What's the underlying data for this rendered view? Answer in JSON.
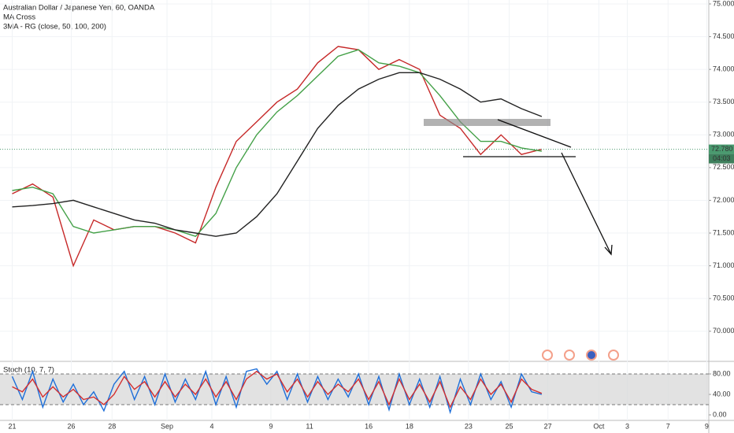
{
  "chart_data": [
    {
      "type": "line",
      "title": "Australian Dollar / Japanese Yen, 60, OANDA",
      "subtitle": [
        "MA Cross",
        "3MA - RG (close, 50, 100, 200)"
      ],
      "x": [
        0,
        1,
        2,
        3,
        4,
        5,
        6,
        7,
        8,
        9,
        10,
        11,
        12,
        13,
        14,
        15,
        16,
        17,
        18,
        19,
        20,
        21,
        22,
        23,
        24,
        25,
        26
      ],
      "series": [
        {
          "color": "#c62828",
          "values": [
            72.1,
            72.25,
            72.05,
            71.0,
            71.7,
            71.55,
            71.6,
            71.6,
            71.5,
            71.35,
            72.2,
            72.9,
            73.2,
            73.5,
            73.7,
            74.1,
            74.35,
            74.3,
            74.0,
            74.15,
            74.0,
            73.3,
            73.1,
            72.7,
            73.0,
            72.7,
            72.78
          ]
        },
        {
          "color": "#43a047",
          "values": [
            72.15,
            72.2,
            72.1,
            71.6,
            71.5,
            71.55,
            71.6,
            71.6,
            71.55,
            71.45,
            71.8,
            72.5,
            73.0,
            73.35,
            73.6,
            73.9,
            74.2,
            74.3,
            74.1,
            74.05,
            73.95,
            73.6,
            73.2,
            72.9,
            72.9,
            72.8,
            72.75
          ]
        },
        {
          "color": "#222222",
          "values": [
            71.9,
            71.92,
            71.95,
            72.0,
            71.9,
            71.8,
            71.7,
            71.65,
            71.55,
            71.5,
            71.45,
            71.5,
            71.75,
            72.1,
            72.6,
            73.1,
            73.45,
            73.7,
            73.85,
            73.95,
            73.95,
            73.85,
            73.7,
            73.5,
            73.55,
            73.4,
            73.28
          ]
        }
      ],
      "xlim": [
        -0.6,
        34.2
      ],
      "xticks": [
        {
          "value": 0,
          "label": "21"
        },
        {
          "value": 2.9,
          "label": "26"
        },
        {
          "value": 4.9,
          "label": "28"
        },
        {
          "value": 7.6,
          "label": "Sep"
        },
        {
          "value": 9.8,
          "label": "4"
        },
        {
          "value": 12.7,
          "label": "9"
        },
        {
          "value": 14.6,
          "label": "11"
        },
        {
          "value": 17.5,
          "label": "16"
        },
        {
          "value": 19.5,
          "label": "18"
        },
        {
          "value": 22.4,
          "label": "23"
        },
        {
          "value": 24.4,
          "label": "25"
        },
        {
          "value": 26.3,
          "label": "27"
        },
        {
          "value": 28.8,
          "label": "Oct"
        },
        {
          "value": 30.2,
          "label": "3"
        },
        {
          "value": 32.2,
          "label": "7"
        },
        {
          "value": 34.1,
          "label": "9"
        }
      ],
      "ylim": [
        69.54,
        75.06
      ],
      "yticks": [
        {
          "value": 70,
          "label": "70.000"
        },
        {
          "value": 70.5,
          "label": "70.500"
        },
        {
          "value": 71,
          "label": "71.000"
        },
        {
          "value": 71.5,
          "label": "71.500"
        },
        {
          "value": 72,
          "label": "72.000"
        },
        {
          "value": 72.5,
          "label": "72.500"
        },
        {
          "value": 73,
          "label": "73.000"
        },
        {
          "value": 73.5,
          "label": "73.500"
        },
        {
          "value": 74,
          "label": "74.000"
        },
        {
          "value": 74.5,
          "label": "74.500"
        },
        {
          "value": 75,
          "label": "75.000"
        }
      ],
      "last_price": {
        "value": 72.78,
        "label": "72.780"
      },
      "countdown": "04:03",
      "grid": true
    },
    {
      "type": "line",
      "title": "Stoch (10, 7, 7)",
      "x": [
        0,
        0.5,
        1,
        1.5,
        2,
        2.5,
        3,
        3.5,
        4,
        4.5,
        5,
        5.5,
        6,
        6.5,
        7,
        7.5,
        8,
        8.5,
        9,
        9.5,
        10,
        10.5,
        11,
        11.5,
        12,
        12.5,
        13,
        13.5,
        14,
        14.5,
        15,
        15.5,
        16,
        16.5,
        17,
        17.5,
        18,
        18.5,
        19,
        19.5,
        20,
        20.5,
        21,
        21.5,
        22,
        22.5,
        23,
        23.5,
        24,
        24.5,
        25,
        25.5,
        26
      ],
      "series": [
        {
          "color": "#1e6fd9",
          "values": [
            75,
            30,
            85,
            15,
            70,
            25,
            60,
            20,
            45,
            8,
            60,
            85,
            30,
            75,
            20,
            80,
            25,
            70,
            30,
            85,
            20,
            75,
            15,
            85,
            90,
            60,
            85,
            30,
            80,
            25,
            75,
            30,
            70,
            35,
            80,
            20,
            75,
            10,
            80,
            20,
            70,
            15,
            75,
            5,
            70,
            20,
            80,
            30,
            65,
            15,
            80,
            45,
            40
          ]
        },
        {
          "color": "#d32f2f",
          "values": [
            55,
            45,
            70,
            35,
            55,
            35,
            50,
            30,
            35,
            20,
            40,
            75,
            50,
            65,
            35,
            65,
            35,
            60,
            40,
            70,
            35,
            65,
            30,
            70,
            85,
            70,
            80,
            45,
            70,
            35,
            65,
            40,
            60,
            45,
            70,
            30,
            65,
            20,
            70,
            30,
            60,
            25,
            65,
            15,
            55,
            30,
            70,
            40,
            60,
            25,
            70,
            50,
            42
          ]
        }
      ],
      "ylim": [
        -10.8,
        104.6
      ],
      "yticks": [
        {
          "value": 0,
          "label": "0.00"
        },
        {
          "value": 40,
          "label": "40.00"
        },
        {
          "value": 80,
          "label": "80.00"
        }
      ],
      "band": [
        20,
        80
      ]
    }
  ]
}
